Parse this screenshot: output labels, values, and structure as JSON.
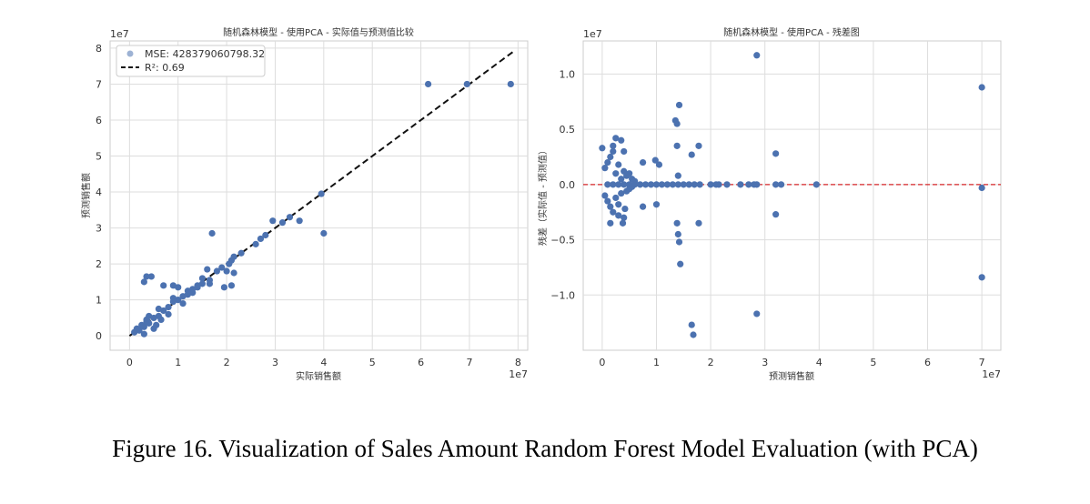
{
  "caption": "Figure 16. Visualization of Sales Amount Random Forest Model Evaluation (with PCA)",
  "colors": {
    "points": "#4c72b0",
    "fit_line": "#111111",
    "zero_line": "#d62728",
    "grid": "#dddddd",
    "frame": "#cccccc"
  },
  "chart_data": [
    {
      "type": "scatter",
      "title": "随机森林模型 - 使用PCA - 实际值与预测值比较",
      "xlabel": "实际销售额",
      "ylabel": "预测销售额",
      "x_scale_label": "1e7",
      "y_scale_label": "1e7",
      "xlim": [
        -0.4,
        8.2
      ],
      "ylim": [
        -0.4,
        8.2
      ],
      "xticks": [
        0,
        1,
        2,
        3,
        4,
        5,
        6,
        7,
        8
      ],
      "yticks": [
        0,
        1,
        2,
        3,
        4,
        5,
        6,
        7,
        8
      ],
      "grid": true,
      "legend": {
        "position": "top-left",
        "entries": [
          "MSE: 428379060798.32",
          "R²: 0.69"
        ]
      },
      "reference_line": {
        "from": [
          0,
          0
        ],
        "to": [
          7.9,
          7.9
        ],
        "style": "dashed"
      },
      "points_x": [
        0.1,
        0.15,
        0.2,
        0.25,
        0.3,
        0.35,
        0.4,
        0.5,
        0.6,
        0.7,
        0.8,
        0.9,
        1.0,
        1.1,
        1.2,
        1.3,
        1.4,
        1.5,
        0.3,
        0.35,
        0.5,
        0.6,
        0.8,
        0.9,
        1.1,
        1.3,
        1.5,
        1.65,
        1.8,
        1.6,
        1.9,
        2.05,
        2.1,
        1.95,
        2.15,
        2.3,
        2.6,
        2.7,
        2.8,
        2.95,
        3.15,
        3.3,
        3.5,
        3.95,
        4.0,
        2.1,
        2.0,
        1.7,
        1.65,
        2.15,
        0.35,
        0.45,
        0.3,
        0.7,
        0.9,
        1.0,
        0.55,
        0.65,
        0.4,
        1.2,
        1.4,
        6.15,
        6.95,
        7.85
      ],
      "points_y": [
        0.1,
        0.2,
        0.15,
        0.3,
        0.25,
        0.4,
        0.35,
        0.5,
        0.55,
        0.7,
        0.8,
        0.95,
        1.0,
        1.1,
        1.15,
        1.3,
        1.4,
        1.45,
        0.05,
        0.45,
        0.2,
        0.75,
        0.6,
        1.05,
        0.9,
        1.2,
        1.6,
        1.55,
        1.8,
        1.85,
        1.9,
        2.0,
        2.1,
        1.35,
        2.2,
        2.3,
        2.55,
        2.7,
        2.8,
        3.2,
        3.15,
        3.3,
        3.2,
        3.95,
        2.85,
        1.4,
        1.8,
        2.85,
        1.45,
        1.75,
        1.65,
        1.65,
        1.5,
        1.4,
        1.4,
        1.35,
        0.3,
        0.45,
        0.55,
        1.25,
        1.35,
        7.0,
        7.0,
        7.0
      ]
    },
    {
      "type": "scatter",
      "title": "随机森林模型 - 使用PCA - 残差图",
      "xlabel": "预测销售额",
      "ylabel": "残差（实际值 - 预测值）",
      "x_scale_label": "1e7",
      "y_scale_label": "1e7",
      "xlim": [
        -0.35,
        7.35
      ],
      "ylim": [
        -1.5,
        1.3
      ],
      "xticks": [
        0,
        1,
        2,
        3,
        4,
        5,
        6,
        7
      ],
      "yticks": [
        -1.0,
        -0.5,
        0.0,
        0.5,
        1.0
      ],
      "grid": true,
      "reference_line": {
        "y": 0,
        "style": "dashed"
      },
      "points_x": [
        0.05,
        0.1,
        0.15,
        0.2,
        0.25,
        0.3,
        0.35,
        0.4,
        0.45,
        0.5,
        0.55,
        0.6,
        0.05,
        0.1,
        0.15,
        0.2,
        0.25,
        0.3,
        0.35,
        0.4,
        0.45,
        0.5,
        0.55,
        0.1,
        0.2,
        0.3,
        0.4,
        0.5,
        0.2,
        0.25,
        0.35,
        0.4,
        0.0,
        0.15,
        0.3,
        0.38,
        0.42,
        0.6,
        0.7,
        0.8,
        0.9,
        1.0,
        1.1,
        1.2,
        1.3,
        1.4,
        1.5,
        1.6,
        1.7,
        1.8,
        0.75,
        0.98,
        1.05,
        1.35,
        1.38,
        1.42,
        1.65,
        1.78,
        1.38,
        1.4,
        0.75,
        1.0,
        1.38,
        1.4,
        1.42,
        1.44,
        1.65,
        1.68,
        1.78,
        2.0,
        2.1,
        2.15,
        2.3,
        2.55,
        2.7,
        2.8,
        2.85,
        3.2,
        3.2,
        3.2,
        3.3,
        3.95,
        2.85,
        2.85,
        7.0,
        7.0,
        7.0
      ],
      "points_y": [
        0.15,
        0.2,
        0.25,
        0.3,
        0.1,
        0.18,
        0.05,
        0.12,
        0.08,
        0.1,
        0.05,
        0.03,
        -0.1,
        -0.15,
        -0.2,
        -0.25,
        -0.12,
        -0.18,
        -0.08,
        -0.3,
        -0.06,
        -0.04,
        -0.02,
        0.0,
        0.0,
        0.0,
        0.0,
        0.0,
        0.35,
        0.42,
        0.4,
        0.3,
        0.33,
        -0.35,
        -0.28,
        -0.35,
        -0.22,
        0.0,
        0.0,
        0.0,
        0.0,
        0.0,
        0.0,
        0.0,
        0.0,
        0.0,
        0.0,
        0.0,
        0.0,
        0.0,
        0.2,
        0.22,
        0.18,
        0.58,
        0.55,
        0.72,
        0.27,
        0.35,
        0.35,
        0.08,
        -0.2,
        -0.18,
        -0.35,
        -0.45,
        -0.52,
        -0.72,
        -1.27,
        -1.36,
        -0.35,
        0.0,
        0.0,
        0.0,
        0.0,
        0.0,
        0.0,
        0.0,
        0.0,
        0.0,
        0.28,
        -0.27,
        0.0,
        0.0,
        1.17,
        -1.17,
        0.88,
        -0.03,
        -0.84
      ]
    }
  ]
}
